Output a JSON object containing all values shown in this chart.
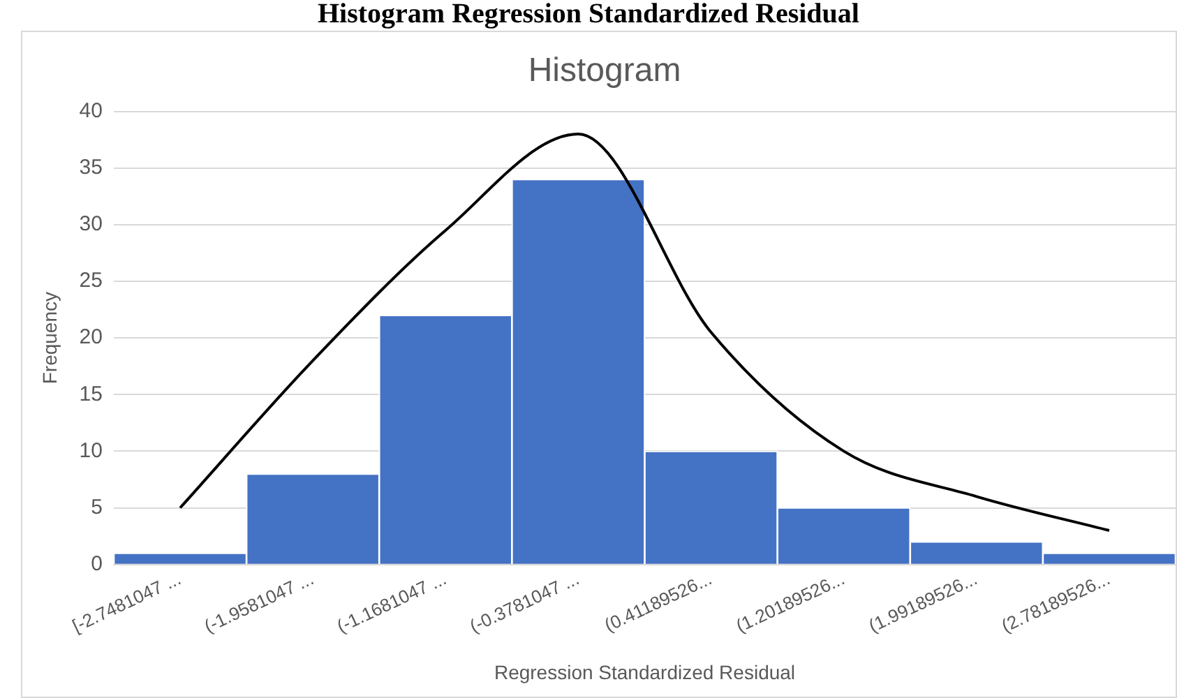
{
  "chart_data": {
    "type": "bar",
    "title": "Histogram",
    "xlabel": "Regression Standardized Residual",
    "ylabel": "Frequency",
    "annotations": [
      "Histogram Regression Standardized Residual"
    ],
    "categories": [
      "[-2.7481047 ...",
      "(-1.9581047 ...",
      "(-1.1681047 ...",
      "(-0.3781047 ...",
      "(0.41189526...",
      "(1.20189526...",
      "(1.99189526...",
      "(2.78189526..."
    ],
    "series": [
      {
        "color": "#4472c4",
        "values": [
          1,
          8,
          22,
          34,
          10,
          5,
          2,
          1
        ]
      },
      {
        "type": "line",
        "color": "#000000",
        "values": [
          5,
          18,
          29.5,
          38,
          20.5,
          10,
          6,
          3
        ]
      }
    ],
    "ylim": [
      0,
      40
    ],
    "yticks": [
      0,
      5,
      10,
      15,
      20,
      25,
      30,
      35,
      40
    ],
    "grid": "y",
    "legend": false,
    "marker": "none",
    "line_style": "solid"
  }
}
